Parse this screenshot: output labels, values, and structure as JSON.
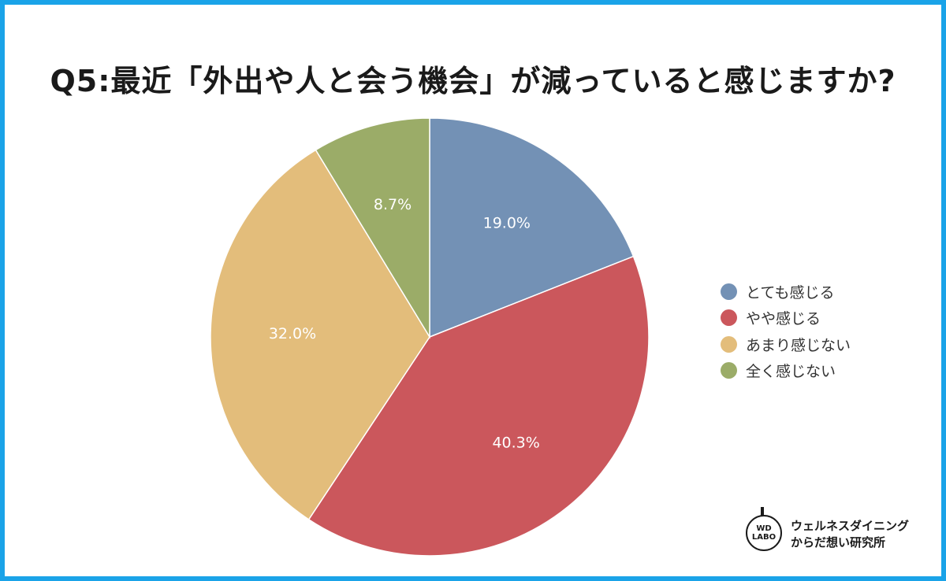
{
  "chart_data": {
    "type": "pie",
    "title": "Q5:最近「外出や人と会う機会」が減っていると感じますか?",
    "slices": [
      {
        "label": "とても感じる",
        "value": 19.0,
        "display": "19.0%",
        "color": "#7391b5"
      },
      {
        "label": "やや感じる",
        "value": 40.3,
        "display": "40.3%",
        "color": "#cb575c"
      },
      {
        "label": "あまり感じない",
        "value": 32.0,
        "display": "32.0%",
        "color": "#e3bd7b"
      },
      {
        "label": "全く感じない",
        "value": 8.7,
        "display": "8.7%",
        "color": "#9bac68"
      }
    ],
    "legend_position": "right"
  },
  "logo": {
    "mark_line1": "WD",
    "mark_line2": "LABO",
    "text_line1": "ウェルネスダイニング",
    "text_line2": "からだ想い研究所"
  },
  "frame_color": "#1aa3e8"
}
